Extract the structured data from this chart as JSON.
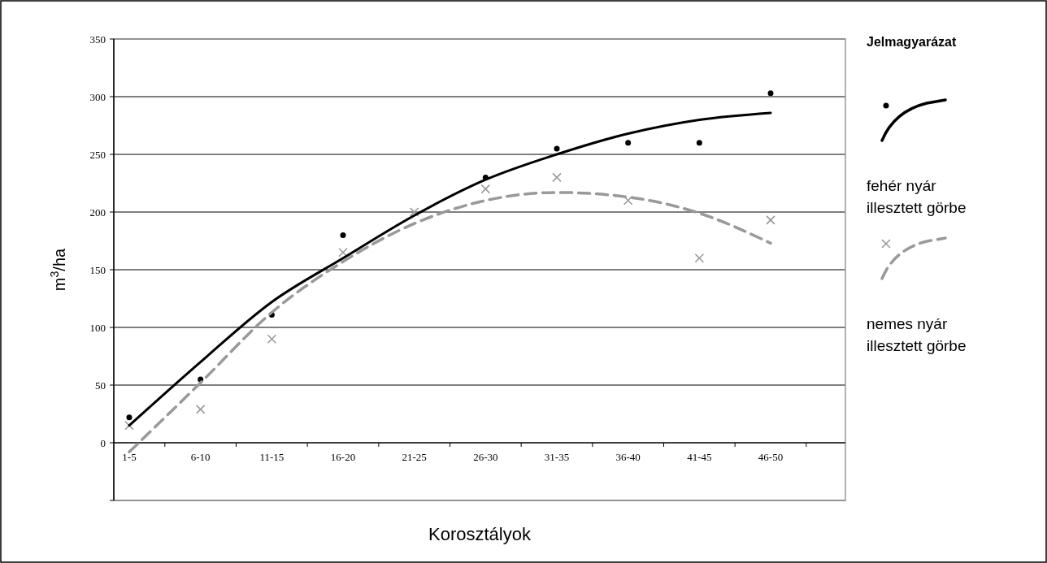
{
  "chart_data": {
    "type": "scatter",
    "xlabel": "Korosztályok",
    "ylabel": "m$^{3}$/ha",
    "legend_title": "Jelmagyarázat",
    "categories": [
      "1-5",
      "6-10",
      "11-15",
      "16-20",
      "21-25",
      "26-30",
      "31-35",
      "36-40",
      "41-45",
      "46-50"
    ],
    "ylim": [
      -50,
      350
    ],
    "yticks": [
      {
        "value": -50,
        "label": null
      },
      0,
      50,
      100,
      150,
      200,
      250,
      300,
      350
    ],
    "grid": "y",
    "legend": "right",
    "series": [
      {
        "color": "#000000",
        "marker": "circle",
        "values": [
          22,
          55,
          111,
          180,
          null,
          230,
          255,
          260,
          260,
          303
        ]
      },
      {
        "color": "#999999",
        "marker": "cross",
        "values": [
          15,
          29,
          90,
          165,
          200,
          220,
          230,
          210,
          160,
          193
        ]
      },
      {
        "type": "line",
        "name": "fehér nyár illesztett görbe",
        "color": "#000000",
        "line_style": "solid",
        "marker": "none",
        "values": [
          15,
          70,
          122,
          160,
          197,
          228,
          250,
          268,
          280,
          286
        ]
      },
      {
        "type": "line",
        "name": "nemes nyár illesztett görbe",
        "color": "#999999",
        "line_style": "dashed",
        "marker": "none",
        "values": [
          -8,
          52,
          113,
          157,
          190,
          210,
          217,
          213,
          199,
          173
        ]
      }
    ]
  }
}
